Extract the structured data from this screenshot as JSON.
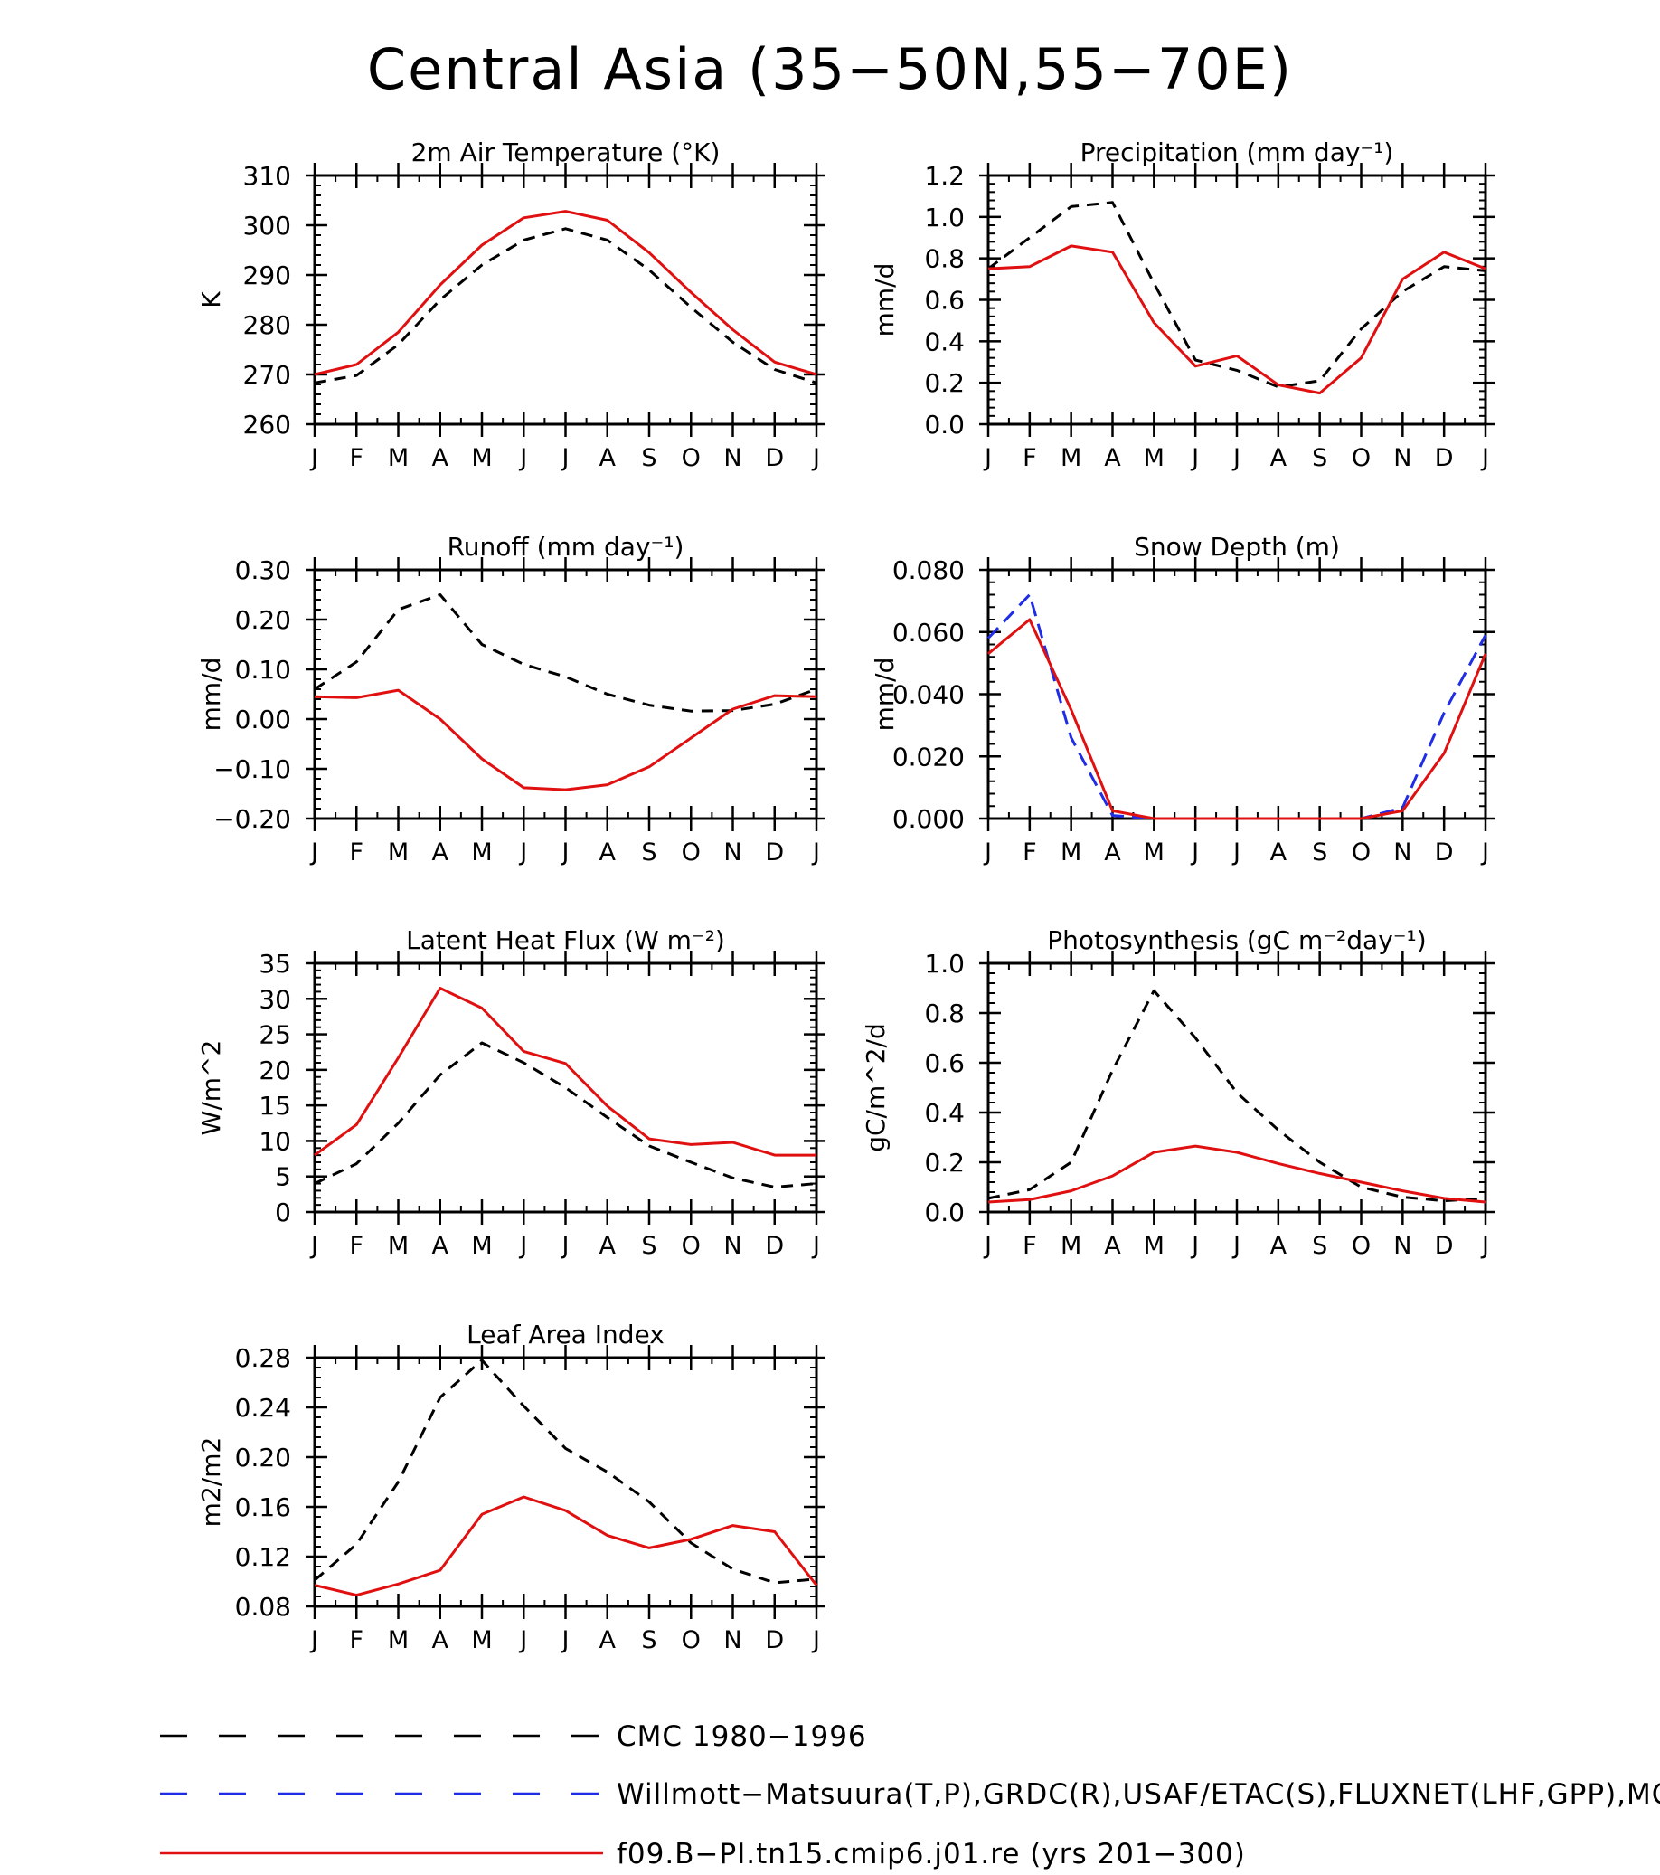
{
  "title": "Central Asia (35−50N,55−70E)",
  "months": [
    "J",
    "F",
    "M",
    "A",
    "M",
    "J",
    "J",
    "A",
    "S",
    "O",
    "N",
    "D",
    "J"
  ],
  "colors": {
    "obs": "#000000",
    "alt_obs": "#1f2ee6",
    "model": "#e01010"
  },
  "legend": [
    {
      "key": "obs",
      "style": "dashed",
      "label": "CMC 1980−1996"
    },
    {
      "key": "alt_obs",
      "style": "dashed",
      "label": "Willmott−Matsuura(T,P),GRDC(R),USAF/ETAC(S),FLUXNET(LHF,GPP),MODIS("
    },
    {
      "key": "model",
      "style": "solid",
      "label": "f09.B−PI.tn15.cmip6.j01.re (yrs 201−300)"
    }
  ],
  "chart_data": [
    {
      "type": "line",
      "title": "2m Air Temperature (°K)",
      "ylabel": "K",
      "ylim": [
        260,
        310
      ],
      "yticks": [
        "260",
        "270",
        "280",
        "290",
        "300",
        "310"
      ],
      "series": [
        {
          "key": "obs",
          "values": [
            268.3,
            269.8,
            276.0,
            285.0,
            292.0,
            297.0,
            299.3,
            297.0,
            291.0,
            283.5,
            276.5,
            271.0,
            268.3
          ]
        },
        {
          "key": "model",
          "values": [
            270.0,
            272.0,
            278.5,
            288.0,
            296.0,
            301.5,
            302.8,
            301.0,
            294.5,
            286.5,
            279.0,
            272.5,
            270.0
          ]
        }
      ]
    },
    {
      "type": "line",
      "title": "Precipitation (mm day⁻¹)",
      "ylabel": "mm/d",
      "ylim": [
        0,
        1.2
      ],
      "yticks": [
        "0.0",
        "0.2",
        "0.4",
        "0.6",
        "0.8",
        "1.0",
        "1.2"
      ],
      "series": [
        {
          "key": "obs",
          "values": [
            0.75,
            0.9,
            1.05,
            1.07,
            0.68,
            0.31,
            0.26,
            0.18,
            0.21,
            0.46,
            0.64,
            0.76,
            0.74
          ]
        },
        {
          "key": "model",
          "values": [
            0.75,
            0.76,
            0.86,
            0.83,
            0.49,
            0.28,
            0.33,
            0.19,
            0.15,
            0.32,
            0.7,
            0.83,
            0.75
          ]
        }
      ]
    },
    {
      "type": "line",
      "title": "Runoff (mm day⁻¹)",
      "ylabel": "mm/d",
      "ylim": [
        -0.2,
        0.3
      ],
      "yticks": [
        "−0.20",
        "−0.10",
        "0.00",
        "0.10",
        "0.20",
        "0.30"
      ],
      "series": [
        {
          "key": "obs",
          "values": [
            0.06,
            0.115,
            0.22,
            0.25,
            0.15,
            0.11,
            0.085,
            0.05,
            0.028,
            0.016,
            0.017,
            0.03,
            0.06
          ]
        },
        {
          "key": "model",
          "values": [
            0.045,
            0.043,
            0.058,
            0.0,
            -0.08,
            -0.138,
            -0.142,
            -0.132,
            -0.096,
            -0.038,
            0.02,
            0.047,
            0.045
          ]
        }
      ]
    },
    {
      "type": "line",
      "title": "Snow Depth (m)",
      "ylabel": "mm/d",
      "ylim": [
        0,
        0.08
      ],
      "yticks": [
        "0.000",
        "0.020",
        "0.040",
        "0.060",
        "0.080"
      ],
      "series": [
        {
          "key": "obs",
          "values": [
            0,
            0,
            0,
            0,
            0,
            0,
            0,
            0,
            0,
            0,
            0,
            0,
            0
          ]
        },
        {
          "key": "alt_obs",
          "values": [
            0.058,
            0.072,
            0.026,
            0.001,
            0.0,
            0.0,
            0.0,
            0.0,
            0.0,
            0.0,
            0.0035,
            0.034,
            0.059
          ]
        },
        {
          "key": "model",
          "values": [
            0.053,
            0.064,
            0.035,
            0.0025,
            0.0,
            0.0,
            0.0,
            0.0,
            0.0,
            0.0,
            0.0025,
            0.021,
            0.053
          ]
        }
      ]
    },
    {
      "type": "line",
      "title": "Latent Heat Flux (W m⁻²)",
      "ylabel": "W/m^2",
      "ylim": [
        0,
        35
      ],
      "yticks": [
        "0",
        "5",
        "10",
        "15",
        "20",
        "25",
        "30",
        "35"
      ],
      "series": [
        {
          "key": "obs",
          "values": [
            4.0,
            6.8,
            12.5,
            19.3,
            23.8,
            21.0,
            17.5,
            13.3,
            9.3,
            7.0,
            4.8,
            3.5,
            4.0
          ]
        },
        {
          "key": "model",
          "values": [
            8.0,
            12.3,
            21.7,
            31.5,
            28.7,
            22.6,
            20.9,
            14.9,
            10.3,
            9.5,
            9.8,
            8.0,
            8.0
          ]
        }
      ]
    },
    {
      "type": "line",
      "title": "Photosynthesis (gC m⁻²day⁻¹)",
      "ylabel": "gC/m^2/d",
      "ylim": [
        0,
        1.0
      ],
      "yticks": [
        "0.0",
        "0.2",
        "0.4",
        "0.6",
        "0.8",
        "1.0"
      ],
      "series": [
        {
          "key": "obs",
          "values": [
            0.055,
            0.09,
            0.2,
            0.57,
            0.89,
            0.7,
            0.48,
            0.33,
            0.2,
            0.1,
            0.06,
            0.045,
            0.055
          ]
        },
        {
          "key": "model",
          "values": [
            0.04,
            0.05,
            0.085,
            0.145,
            0.24,
            0.265,
            0.24,
            0.195,
            0.155,
            0.12,
            0.085,
            0.055,
            0.04
          ]
        }
      ]
    },
    {
      "type": "line",
      "title": "Leaf Area Index",
      "ylabel": "m2/m2",
      "ylim": [
        0.08,
        0.28
      ],
      "yticks": [
        "0.08",
        "0.12",
        "0.16",
        "0.20",
        "0.24",
        "0.28"
      ],
      "series": [
        {
          "key": "obs",
          "values": [
            0.101,
            0.13,
            0.18,
            0.248,
            0.278,
            0.241,
            0.207,
            0.188,
            0.164,
            0.131,
            0.11,
            0.099,
            0.102
          ]
        },
        {
          "key": "model",
          "values": [
            0.097,
            0.089,
            0.098,
            0.109,
            0.154,
            0.168,
            0.157,
            0.137,
            0.127,
            0.134,
            0.145,
            0.14,
            0.097
          ]
        }
      ]
    }
  ]
}
